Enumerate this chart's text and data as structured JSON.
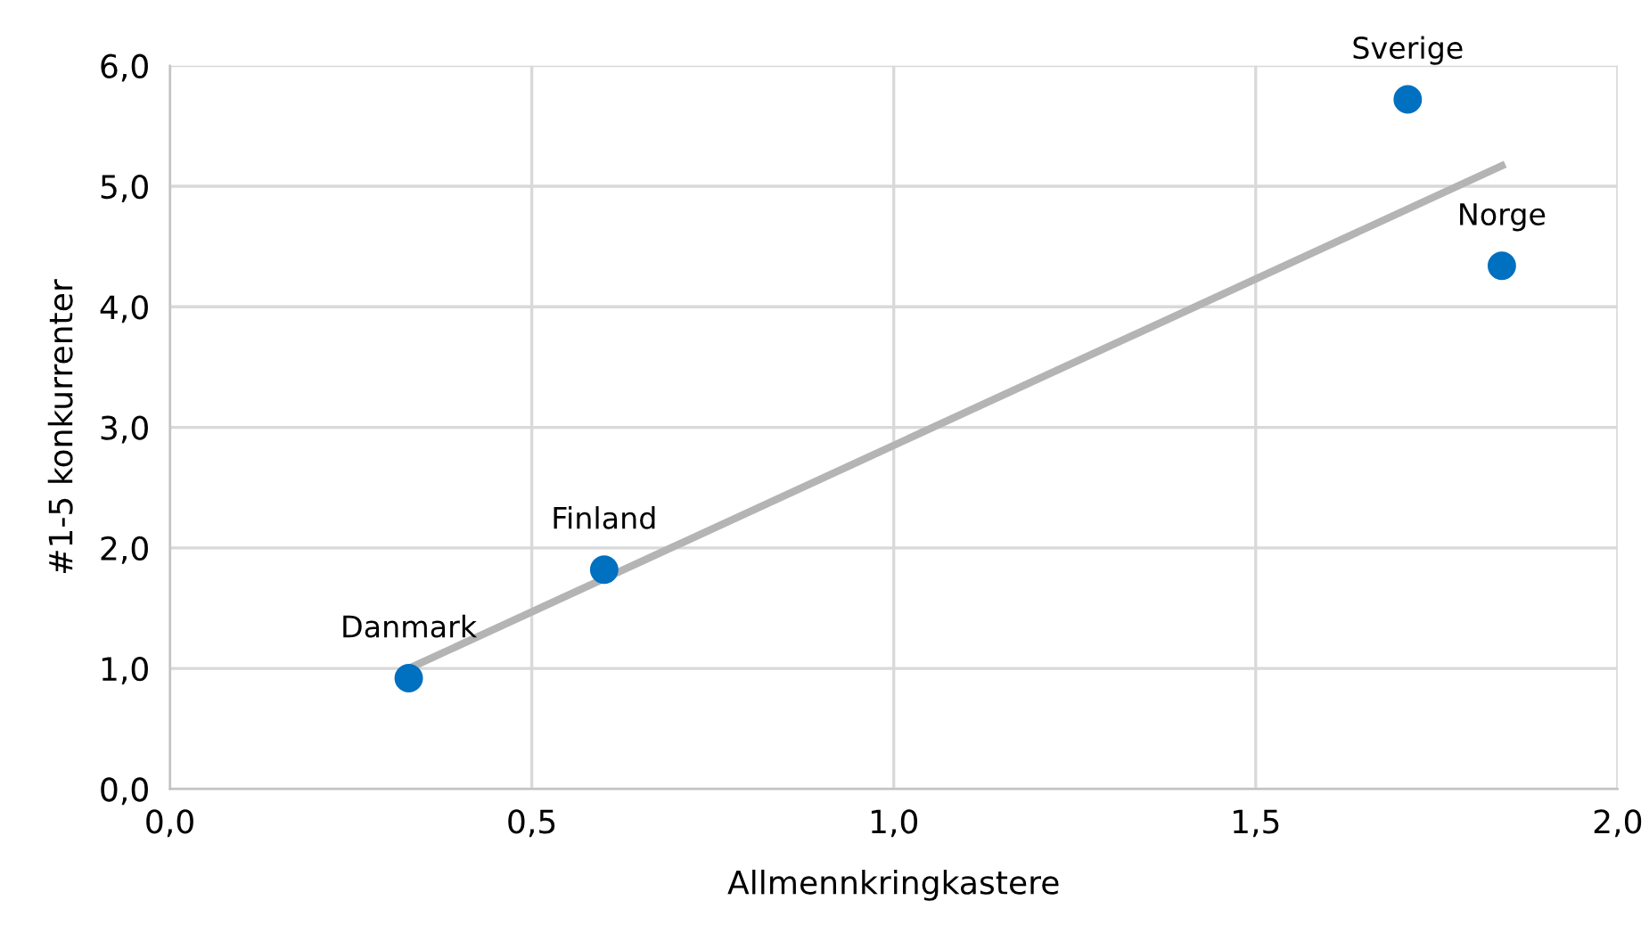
{
  "chart_data": {
    "type": "scatter",
    "xlabel": "Allmennkringkastere",
    "ylabel": "#1-5 konkurrenter",
    "series": [
      {
        "marker": "circle",
        "color": "#0070c0",
        "x": [
          0.33,
          0.6,
          1.71,
          1.84
        ],
        "values": [
          0.92,
          1.82,
          5.72,
          4.34
        ]
      },
      {
        "type": "line",
        "marker": "none",
        "color": "#b4b4b4",
        "x": [
          0.33,
          1.84
        ],
        "values": [
          1.0,
          5.17
        ]
      }
    ],
    "annotations": [
      {
        "text": "Danmark",
        "x": 0.33,
        "y": 0.92
      },
      {
        "text": "Finland",
        "x": 0.6,
        "y": 1.82
      },
      {
        "text": "Sverige",
        "x": 1.71,
        "y": 5.72
      },
      {
        "text": "Norge",
        "x": 1.84,
        "y": 4.34
      }
    ],
    "xlim": [
      0,
      2
    ],
    "ylim": [
      0,
      6
    ],
    "xticks": [
      {
        "value": 0,
        "label": "0,0"
      },
      {
        "value": 0.5,
        "label": "0,5"
      },
      {
        "value": 1,
        "label": "1,0"
      },
      {
        "value": 1.5,
        "label": "1,5"
      },
      {
        "value": 2,
        "label": "2,0"
      }
    ],
    "yticks": [
      {
        "value": 0,
        "label": "0,0"
      },
      {
        "value": 1,
        "label": "1,0"
      },
      {
        "value": 2,
        "label": "2,0"
      },
      {
        "value": 3,
        "label": "3,0"
      },
      {
        "value": 4,
        "label": "4,0"
      },
      {
        "value": 5,
        "label": "5,0"
      },
      {
        "value": 6,
        "label": "6,0"
      }
    ],
    "grid": true,
    "legend": false
  }
}
